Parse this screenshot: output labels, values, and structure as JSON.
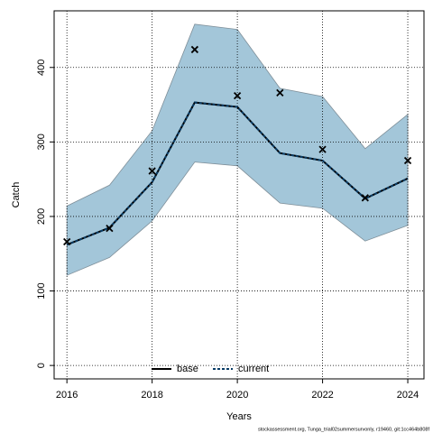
{
  "chart_data": {
    "type": "line",
    "xlabel": "Years",
    "ylabel": "Catch",
    "footer": "stockassessment.org, Tunga_trial02summersurvonly, r19460, git:1cc464b808f",
    "x": [
      2016,
      2017,
      2018,
      2019,
      2020,
      2021,
      2022,
      2023,
      2024
    ],
    "band": {
      "color": "#a3c6d9",
      "edge": "#7f8f99",
      "upper": [
        214,
        242,
        315,
        458,
        451,
        372,
        361,
        291,
        337
      ],
      "lower": [
        121,
        145,
        194,
        273,
        268,
        218,
        211,
        167,
        188
      ]
    },
    "series": [
      {
        "name": "base",
        "color": "#000000",
        "dash": false,
        "values": [
          162,
          185,
          246,
          353,
          347,
          285,
          275,
          224,
          251
        ]
      },
      {
        "name": "current",
        "color": "#0a3d66",
        "dash": true,
        "values": [
          162,
          185,
          246,
          353,
          347,
          285,
          275,
          224,
          251
        ]
      }
    ],
    "observed": {
      "color": "#000000",
      "values": [
        166,
        184,
        261,
        424,
        362,
        366,
        290,
        225,
        275
      ]
    },
    "xlim": [
      2015.7,
      2024.38
    ],
    "ylim": [
      -18,
      476
    ],
    "xticks": [
      2016,
      2018,
      2020,
      2022,
      2024
    ],
    "yticks": [
      0,
      100,
      200,
      300,
      400
    ],
    "grid": true,
    "legend": "bottom"
  }
}
